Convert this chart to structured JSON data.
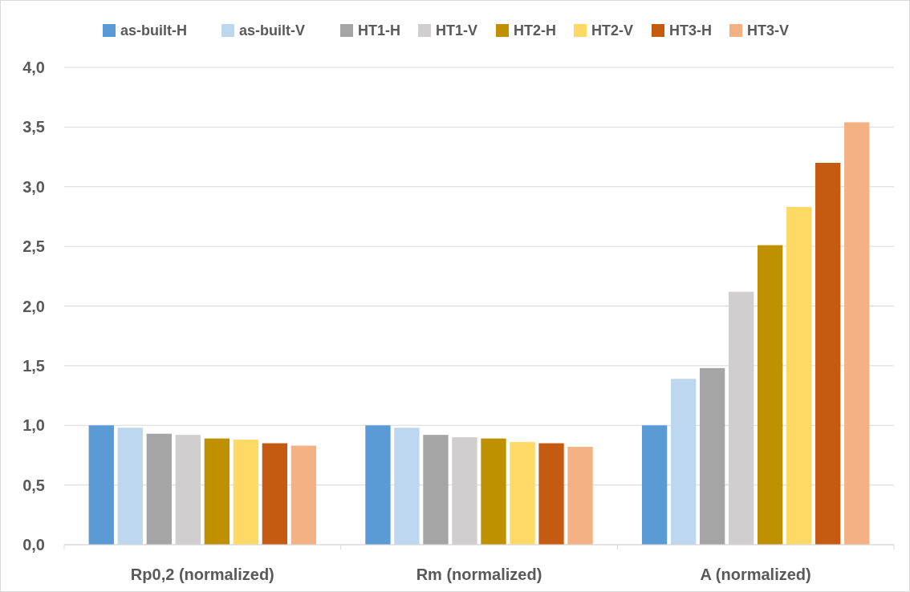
{
  "chart_data": {
    "type": "bar",
    "categories": [
      "Rp0,2 (normalized)",
      "Rm (normalized)",
      "A (normalized)"
    ],
    "series": [
      {
        "name": "as-built-H",
        "color": "#5b9bd5",
        "values": [
          1.0,
          1.0,
          1.0
        ]
      },
      {
        "name": "as-built-V",
        "color": "#bdd7ee",
        "values": [
          0.98,
          0.98,
          1.39
        ]
      },
      {
        "name": "HT1-H",
        "color": "#a5a5a5",
        "values": [
          0.93,
          0.92,
          1.48
        ]
      },
      {
        "name": "HT1-V",
        "color": "#d0cece",
        "values": [
          0.92,
          0.9,
          2.12
        ]
      },
      {
        "name": "HT2-H",
        "color": "#bf9000",
        "values": [
          0.89,
          0.89,
          2.51
        ]
      },
      {
        "name": "HT2-V",
        "color": "#ffd966",
        "values": [
          0.88,
          0.86,
          2.83
        ]
      },
      {
        "name": "HT3-H",
        "color": "#c55a11",
        "values": [
          0.85,
          0.85,
          3.2
        ]
      },
      {
        "name": "HT3-V",
        "color": "#f4b183",
        "values": [
          0.83,
          0.82,
          3.54
        ]
      }
    ],
    "ylim": [
      0,
      4
    ],
    "yticks": [
      {
        "value": 0,
        "label": "0,0"
      },
      {
        "value": 0.5,
        "label": "0,5"
      },
      {
        "value": 1,
        "label": "1,0"
      },
      {
        "value": 1.5,
        "label": "1,5"
      },
      {
        "value": 2,
        "label": "2,0"
      },
      {
        "value": 2.5,
        "label": "2,5"
      },
      {
        "value": 3,
        "label": "3,0"
      },
      {
        "value": 3.5,
        "label": "3,5"
      },
      {
        "value": 4,
        "label": "4,0"
      }
    ],
    "grid": "y",
    "legend": "top"
  }
}
